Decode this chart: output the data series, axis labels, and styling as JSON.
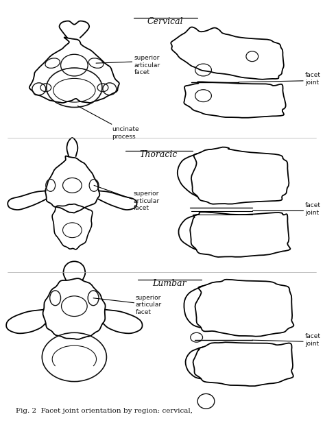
{
  "fig_width": 4.74,
  "fig_height": 6.2,
  "dpi": 100,
  "title_cervical": "Cervical",
  "title_thoracic": "Thoracic",
  "title_lumbar": "Lumbar",
  "label_superior_articular_facet_3line": "superior\narticular\nfacet",
  "label_uncinate_process": "uncinate\nprocess",
  "label_facet_joint": "facet\njoint",
  "caption": "Fig. 2  Facet joint orientation by region: cervical,",
  "text_color": "#111111",
  "line_color": "#111111",
  "font_size_title": 9,
  "font_size_label": 6.5,
  "font_size_caption": 7.5
}
